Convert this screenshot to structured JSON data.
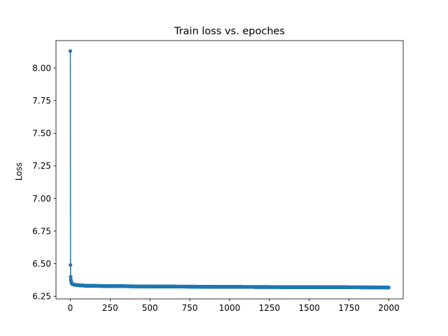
{
  "chart_data": {
    "type": "line",
    "title": "Train loss vs. epoches",
    "xlabel": "",
    "ylabel": "Loss",
    "xlim": [
      -90,
      2090
    ],
    "ylim": [
      6.23,
      8.21
    ],
    "xticks": [
      0,
      250,
      500,
      750,
      1000,
      1250,
      1500,
      1750,
      2000
    ],
    "yticks": [
      6.25,
      6.5,
      6.75,
      7.0,
      7.25,
      7.5,
      7.75,
      8.0
    ],
    "ytick_labels": [
      "6.25",
      "6.50",
      "6.75",
      "7.00",
      "7.25",
      "7.50",
      "7.75",
      "8.00"
    ],
    "grid": false,
    "legend": "none",
    "marker": "circle",
    "series": [
      {
        "color": "#1f77b4",
        "x_start": 0,
        "x_end": 1999,
        "x_step": 1,
        "initial_values": [
          8.13,
          6.49,
          6.4,
          6.38,
          6.37,
          6.365,
          6.36,
          6.355,
          6.35,
          6.348,
          6.346,
          6.344
        ],
        "curve_anchors": [
          [
            12,
            6.344
          ],
          [
            20,
            6.34
          ],
          [
            40,
            6.336
          ],
          [
            70,
            6.333
          ],
          [
            100,
            6.331
          ],
          [
            200,
            6.329
          ],
          [
            350,
            6.327
          ],
          [
            500,
            6.325
          ],
          [
            750,
            6.324
          ],
          [
            1000,
            6.322
          ],
          [
            1250,
            6.321
          ],
          [
            1500,
            6.32
          ],
          [
            1750,
            6.319
          ],
          [
            1999,
            6.318
          ]
        ]
      }
    ]
  }
}
